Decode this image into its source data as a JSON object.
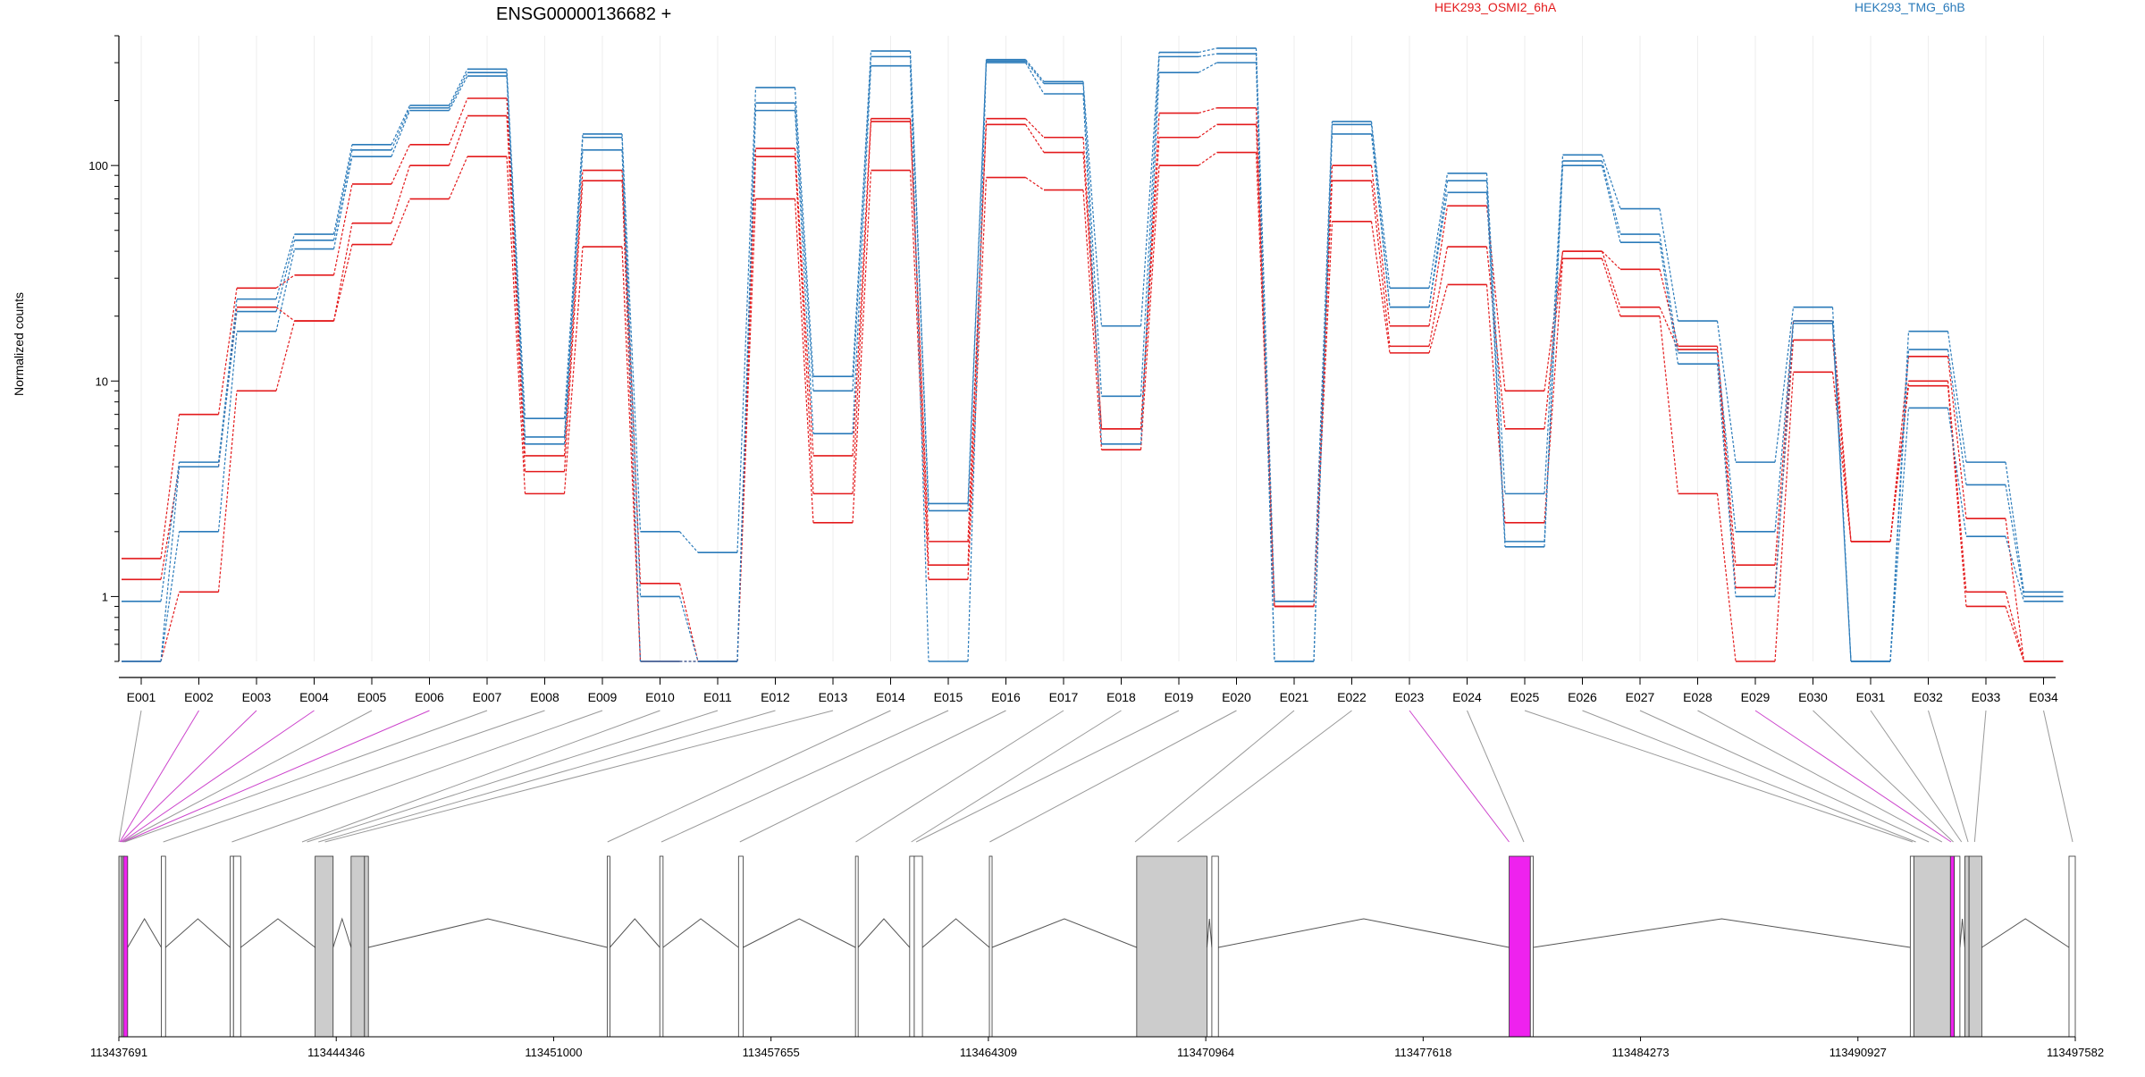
{
  "chart_data": {
    "type": "line",
    "title": "ENSG00000136682 +",
    "ylabel": "Normalized counts",
    "yscale": "log",
    "ylim": [
      0.5,
      400
    ],
    "ytick_labels": [
      "1",
      "10",
      "100"
    ],
    "yticks": [
      1,
      10,
      100
    ],
    "grid": "vertical",
    "legend_position": "top",
    "categories": [
      "E001",
      "E002",
      "E003",
      "E004",
      "E005",
      "E006",
      "E007",
      "E008",
      "E009",
      "E010",
      "E011",
      "E012",
      "E013",
      "E014",
      "E015",
      "E016",
      "E017",
      "E018",
      "E019",
      "E020",
      "E021",
      "E022",
      "E023",
      "E024",
      "E025",
      "E026",
      "E027",
      "E028",
      "E029",
      "E030",
      "E031",
      "E032",
      "E033",
      "E034"
    ],
    "groups": [
      {
        "name": "HEK293_OSMI2_6hA",
        "color": "#e31a1c"
      },
      {
        "name": "HEK293_TMG_6hB",
        "color": "#2b7bba"
      }
    ],
    "series": [
      {
        "group": 0,
        "values": [
          1.5,
          7.0,
          27.0,
          31.0,
          82.0,
          125.0,
          205.0,
          4.5,
          95.0,
          1.15,
          0.5,
          120.0,
          4.5,
          165.0,
          1.4,
          165.0,
          135.0,
          6.0,
          175.0,
          185.0,
          0.9,
          100.0,
          18.0,
          65.0,
          9.0,
          40.0,
          33.0,
          14.5,
          1.4,
          19.0,
          1.8,
          13.0,
          2.3,
          0.5
        ]
      },
      {
        "group": 0,
        "values": [
          1.2,
          4.0,
          22.0,
          19.0,
          54.0,
          100.0,
          170.0,
          3.8,
          85.0,
          0.5,
          0.5,
          110.0,
          3.0,
          160.0,
          1.8,
          155.0,
          115.0,
          6.0,
          135.0,
          155.0,
          0.9,
          85.0,
          14.5,
          42.0,
          6.0,
          40.0,
          22.0,
          14.0,
          1.1,
          15.5,
          1.8,
          10.0,
          1.05,
          0.5
        ]
      },
      {
        "group": 0,
        "values": [
          0.5,
          1.05,
          9.0,
          19.0,
          43.0,
          70.0,
          110.0,
          3.0,
          42.0,
          0.5,
          0.5,
          70.0,
          2.2,
          95.0,
          1.2,
          88.0,
          77.0,
          4.8,
          100.0,
          115.0,
          0.9,
          55.0,
          13.5,
          28.0,
          2.2,
          37.0,
          20.0,
          3.0,
          0.5,
          11.0,
          1.8,
          9.5,
          0.9,
          0.5
        ]
      },
      {
        "group": 1,
        "values": [
          0.95,
          4.2,
          24.0,
          48.0,
          125.0,
          190.0,
          280.0,
          6.7,
          140.0,
          2.0,
          1.6,
          230.0,
          10.5,
          340.0,
          2.7,
          310.0,
          245.0,
          18.0,
          335.0,
          350.0,
          0.95,
          160.0,
          27.0,
          92.0,
          3.0,
          112.0,
          63.0,
          19.0,
          4.2,
          22.0,
          0.5,
          17.0,
          4.2,
          1.05
        ]
      },
      {
        "group": 1,
        "values": [
          0.5,
          4.0,
          21.0,
          45.0,
          118.0,
          185.0,
          270.0,
          5.5,
          135.0,
          1.0,
          0.5,
          195.0,
          9.0,
          320.0,
          2.5,
          305.0,
          240.0,
          8.5,
          320.0,
          330.0,
          0.5,
          155.0,
          22.0,
          85.0,
          1.8,
          105.0,
          48.0,
          13.5,
          2.0,
          19.0,
          0.5,
          14.0,
          3.3,
          1.0
        ]
      },
      {
        "group": 1,
        "values": [
          0.5,
          2.0,
          17.0,
          41.0,
          110.0,
          180.0,
          260.0,
          5.1,
          118.0,
          0.5,
          0.5,
          180.0,
          5.7,
          290.0,
          0.5,
          300.0,
          215.0,
          5.1,
          270.0,
          300.0,
          0.5,
          140.0,
          22.0,
          75.0,
          1.7,
          100.0,
          44.0,
          12.0,
          1.0,
          18.5,
          0.5,
          7.5,
          1.9,
          0.95
        ]
      }
    ],
    "gene_model": {
      "coordinate_ticks": [
        "113437691",
        "113444346",
        "113451000",
        "113457655",
        "113464309",
        "113470964",
        "113477618",
        "113484273",
        "113490927",
        "113497582"
      ],
      "coordinate_start": 113437691,
      "coordinate_end": 113497582,
      "exon_fill": "#cccccc",
      "exon_highlight": "#ee22ee",
      "intron_color": "#555555",
      "exons": [
        {
          "id": "E001",
          "start": 113437691,
          "end": 113437780,
          "type": "filled"
        },
        {
          "id": "E002",
          "start": 113437780,
          "end": 113437830,
          "type": "filled"
        },
        {
          "id": "E003",
          "start": 113437830,
          "end": 113437960,
          "type": "highlight"
        },
        {
          "id": "E004",
          "start": 113438990,
          "end": 113439120,
          "type": "outline"
        },
        {
          "id": "E005",
          "start": 113441100,
          "end": 113441200,
          "type": "outline"
        },
        {
          "id": "E006",
          "start": 113441200,
          "end": 113441420,
          "type": "outline"
        },
        {
          "id": "E007",
          "start": 113443700,
          "end": 113444250,
          "type": "filled"
        },
        {
          "id": "E008",
          "start": 113444800,
          "end": 113445210,
          "type": "filled"
        },
        {
          "id": "E009",
          "start": 113445210,
          "end": 113445330,
          "type": "filled"
        },
        {
          "id": "E010",
          "start": 113452640,
          "end": 113452720,
          "type": "outline"
        },
        {
          "id": "E011",
          "start": 113454250,
          "end": 113454350,
          "type": "outline"
        },
        {
          "id": "E012",
          "start": 113456660,
          "end": 113456800,
          "type": "outline"
        },
        {
          "id": "E013",
          "start": 113460240,
          "end": 113460320,
          "type": "outline"
        },
        {
          "id": "E014",
          "start": 113461900,
          "end": 113462040,
          "type": "outline"
        },
        {
          "id": "E015",
          "start": 113462040,
          "end": 113462290,
          "type": "outline"
        },
        {
          "id": "E016",
          "start": 113464340,
          "end": 113464420,
          "type": "outline"
        },
        {
          "id": "E017",
          "start": 113468850,
          "end": 113471000,
          "type": "filled"
        },
        {
          "id": "E018",
          "start": 113471150,
          "end": 113471350,
          "type": "outline"
        },
        {
          "id": "E019",
          "start": 113480250,
          "end": 113480900,
          "type": "highlight"
        },
        {
          "id": "E020",
          "start": 113480900,
          "end": 113480990,
          "type": "outline"
        },
        {
          "id": "E021",
          "start": 113492530,
          "end": 113492640,
          "type": "outline"
        },
        {
          "id": "E022",
          "start": 113492640,
          "end": 113493760,
          "type": "filled"
        },
        {
          "id": "E023",
          "start": 113493760,
          "end": 113493880,
          "type": "highlight"
        },
        {
          "id": "E024",
          "start": 113493880,
          "end": 113494050,
          "type": "outline"
        },
        {
          "id": "E025",
          "start": 113494200,
          "end": 113494330,
          "type": "filled"
        },
        {
          "id": "E026",
          "start": 113494330,
          "end": 113494720,
          "type": "filled"
        },
        {
          "id": "E027",
          "start": 113497390,
          "end": 113497582,
          "type": "outline"
        }
      ],
      "connectors": [
        {
          "start": 113437691,
          "color": "gray"
        },
        {
          "start": 113437720,
          "color": "highlight"
        },
        {
          "start": 113437750,
          "color": "highlight"
        },
        {
          "start": 113437780,
          "color": "highlight"
        },
        {
          "start": 113437800,
          "color": "gray"
        },
        {
          "start": 113437830,
          "color": "highlight"
        },
        {
          "start": 113437870,
          "color": "gray"
        },
        {
          "start": 113439050,
          "color": "gray"
        },
        {
          "start": 113441150,
          "color": "gray"
        },
        {
          "start": 113443300,
          "color": "gray"
        },
        {
          "start": 113443450,
          "color": "gray"
        },
        {
          "start": 113443800,
          "color": "gray"
        },
        {
          "start": 113444000,
          "color": "gray"
        },
        {
          "start": 113452650,
          "color": "gray"
        },
        {
          "start": 113454300,
          "color": "gray"
        },
        {
          "start": 113456700,
          "color": "gray"
        },
        {
          "start": 113460250,
          "color": "gray"
        },
        {
          "start": 113461950,
          "color": "gray"
        },
        {
          "start": 113462100,
          "color": "gray"
        },
        {
          "start": 113464350,
          "color": "gray"
        },
        {
          "start": 113468800,
          "color": "gray"
        },
        {
          "start": 113470100,
          "color": "gray"
        },
        {
          "start": 113480250,
          "color": "highlight"
        },
        {
          "start": 113480700,
          "color": "gray"
        },
        {
          "start": 113492600,
          "color": "gray"
        },
        {
          "start": 113492700,
          "color": "gray"
        },
        {
          "start": 113493100,
          "color": "gray"
        },
        {
          "start": 113493500,
          "color": "gray"
        },
        {
          "start": 113493780,
          "color": "highlight"
        },
        {
          "start": 113493850,
          "color": "gray"
        },
        {
          "start": 113494100,
          "color": "gray"
        },
        {
          "start": 113494300,
          "color": "gray"
        },
        {
          "start": 113494500,
          "color": "gray"
        },
        {
          "start": 113497500,
          "color": "gray"
        }
      ]
    }
  }
}
